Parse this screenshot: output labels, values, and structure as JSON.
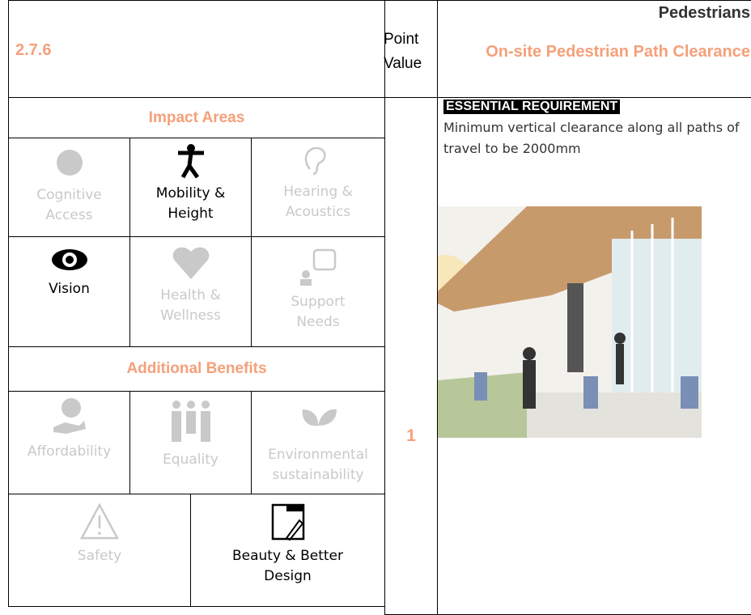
{
  "header": {
    "code": "2.7.6",
    "point_label": "Point Value",
    "category": "Pedestrians",
    "title": "On-site Pedestrian Path Clearance"
  },
  "impact_areas": {
    "title": "Impact Areas",
    "items": [
      {
        "label": "Cognitive Access",
        "active": false
      },
      {
        "label": "Mobility & Height",
        "active": true
      },
      {
        "label": "Hearing & Acoustics",
        "active": false
      },
      {
        "label": "Vision",
        "active": true
      },
      {
        "label": "Health & Wellness",
        "active": false
      },
      {
        "label": "Support Needs",
        "active": false
      }
    ]
  },
  "additional_benefits": {
    "title": "Additional Benefits",
    "items": [
      {
        "label": "Affordability",
        "active": false
      },
      {
        "label": "Equality",
        "active": false
      },
      {
        "label": "Environmental sustainability",
        "active": false
      },
      {
        "label": "Safety",
        "active": false
      },
      {
        "label": "Beauty & Better Design",
        "active": true
      }
    ]
  },
  "points": "1",
  "requirement": {
    "heading": "ESSENTIAL REQUIREMENT",
    "text": "Minimum vertical clearance along all paths of travel to be 2000mm"
  }
}
